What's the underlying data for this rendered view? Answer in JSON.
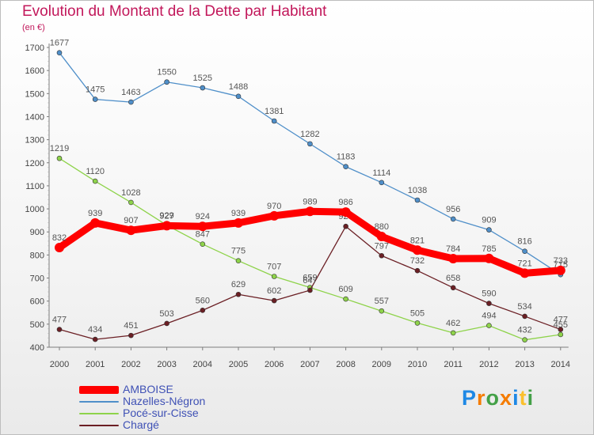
{
  "chart_data": {
    "type": "line",
    "title": "Evolution du Montant de la Dette par Habitant",
    "unit_label": "(en €)",
    "categories": [
      "2000",
      "2001",
      "2002",
      "2003",
      "2004",
      "2005",
      "2006",
      "2007",
      "2008",
      "2009",
      "2010",
      "2011",
      "2012",
      "2013",
      "2014"
    ],
    "ylim": [
      400,
      1700
    ],
    "yticks": [
      400,
      500,
      600,
      700,
      800,
      900,
      1000,
      1100,
      1200,
      1300,
      1400,
      1500,
      1600,
      1700
    ],
    "grid": false,
    "legend_position": "bottom-left",
    "series": [
      {
        "name": "AMBOISE",
        "color": "#ff0000",
        "values": [
          832,
          939,
          907,
          927,
          924,
          939,
          970,
          989,
          986,
          880,
          821,
          784,
          785,
          721,
          733
        ]
      },
      {
        "name": "Nazelles-Négron",
        "color": "#4f8fc9",
        "values": [
          1677,
          1475,
          1463,
          1550,
          1525,
          1488,
          1381,
          1282,
          1183,
          1114,
          1038,
          956,
          909,
          816,
          715
        ]
      },
      {
        "name": "Pocé-sur-Cisse",
        "color": "#8ed34a",
        "values": [
          1219,
          1120,
          1028,
          929,
          847,
          775,
          707,
          659,
          609,
          557,
          505,
          462,
          494,
          432,
          455
        ]
      },
      {
        "name": "Chargé",
        "color": "#6b1f24",
        "values": [
          477,
          434,
          451,
          503,
          560,
          629,
          602,
          647,
          924,
          797,
          732,
          658,
          590,
          534,
          477
        ]
      }
    ]
  },
  "logo": {
    "text": "Proxiti"
  }
}
